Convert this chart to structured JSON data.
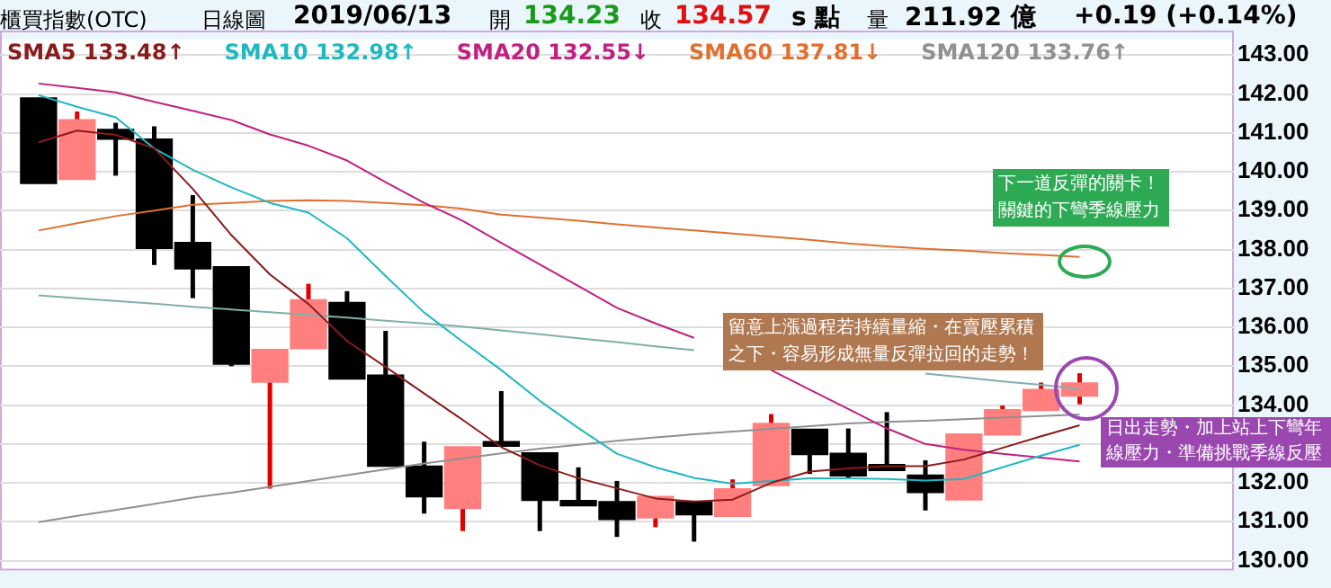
{
  "chart_data": {
    "type": "candlestick",
    "title": "櫃買指數(OTC)",
    "annotations": [
      "日線圖",
      "2019/06/13",
      "開",
      "134.23",
      "收",
      "134.57",
      "s 點",
      "量",
      "211.92 億",
      "+0.19 (+0.14%)",
      "下一道反彈的關卡！關鍵的下彎季線壓力",
      "留意上漲過程若持續量縮・在賣壓累積之下・容易形成無量反彈拉回的走勢！",
      "日出走勢・加上站上下彎年線壓力・準備挑戰季線反壓"
    ],
    "categories": [
      null,
      null,
      null,
      null,
      null,
      null,
      null,
      null,
      null,
      null,
      null,
      null,
      null,
      null,
      null,
      null,
      null,
      null,
      null,
      null,
      null,
      null,
      null,
      null,
      null,
      null,
      null,
      null
    ],
    "ohlc": [
      [
        141.9,
        141.9,
        139.7,
        139.7
      ],
      [
        139.8,
        141.55,
        139.8,
        141.34
      ],
      [
        141.09,
        141.26,
        139.9,
        140.84
      ],
      [
        140.84,
        141.17,
        137.6,
        138.03
      ],
      [
        138.18,
        139.4,
        136.75,
        137.5
      ],
      [
        137.56,
        137.56,
        135.0,
        135.05
      ],
      [
        134.59,
        135.43,
        131.85,
        135.43
      ],
      [
        135.45,
        137.12,
        135.45,
        136.71
      ],
      [
        136.64,
        136.93,
        134.67,
        134.67
      ],
      [
        134.77,
        135.91,
        132.43,
        132.43
      ],
      [
        132.43,
        133.06,
        131.21,
        131.64
      ],
      [
        131.34,
        132.93,
        130.76,
        132.93
      ],
      [
        133.06,
        134.36,
        132.94,
        132.94
      ],
      [
        132.77,
        132.77,
        130.76,
        131.55
      ],
      [
        131.55,
        132.4,
        131.41,
        131.41
      ],
      [
        131.52,
        132.05,
        130.61,
        131.06
      ],
      [
        131.1,
        131.65,
        130.86,
        131.65
      ],
      [
        131.52,
        131.52,
        130.49,
        131.18
      ],
      [
        131.14,
        132.09,
        131.14,
        131.85
      ],
      [
        131.93,
        133.77,
        131.93,
        133.53
      ],
      [
        133.38,
        133.38,
        132.23,
        132.73
      ],
      [
        132.76,
        133.4,
        132.11,
        132.18
      ],
      [
        132.47,
        133.82,
        132.32,
        132.32
      ],
      [
        132.2,
        132.58,
        131.29,
        131.75
      ],
      [
        131.56,
        133.26,
        131.56,
        133.26
      ],
      [
        133.23,
        133.99,
        133.23,
        133.88
      ],
      [
        133.86,
        134.58,
        133.86,
        134.4
      ],
      [
        134.23,
        134.82,
        134.02,
        134.57
      ]
    ],
    "colors": [
      "#000000",
      "#ff7f7f",
      "#000000",
      "#000000",
      "#000000",
      "#000000",
      "#ff7f7f",
      "#ff7f7f",
      "#000000",
      "#000000",
      "#000000",
      "#ff7f7f",
      "#000000",
      "#000000",
      "#000000",
      "#000000",
      "#ff7f7f",
      "#000000",
      "#ff7f7f",
      "#ff7f7f",
      "#000000",
      "#000000",
      "#000000",
      "#000000",
      "#ff7f7f",
      "#ff7f7f",
      "#ff7f7f",
      "#ff7f7f"
    ],
    "series": [
      {
        "type": "line",
        "name": "SMA5 133.48↑",
        "color": "#8b1a1a",
        "values": [
          140.76,
          141.06,
          140.95,
          140.6,
          139.56,
          138.37,
          137.36,
          136.6,
          135.65,
          134.98,
          134.3,
          133.62,
          132.92,
          132.45,
          132.12,
          131.86,
          131.6,
          131.52,
          131.57,
          132.0,
          132.29,
          132.37,
          132.43,
          132.43,
          132.6,
          132.9,
          133.2,
          133.48
        ]
      },
      {
        "type": "line",
        "name": "SMA10 132.98↑",
        "color": "#20b8c0",
        "values": [
          141.97,
          141.67,
          141.4,
          140.6,
          140.05,
          139.6,
          139.2,
          138.95,
          138.29,
          137.32,
          136.38,
          135.63,
          134.9,
          134.11,
          133.41,
          132.75,
          132.4,
          132.13,
          131.98,
          132.05,
          132.12,
          132.12,
          132.1,
          132.06,
          132.1,
          132.4,
          132.7,
          132.98
        ]
      },
      {
        "type": "line",
        "name": "SMA20 132.55↓",
        "color": "#c02080",
        "values": [
          142.27,
          142.16,
          142.04,
          141.8,
          141.57,
          141.33,
          140.96,
          140.67,
          140.29,
          139.73,
          139.2,
          138.74,
          138.17,
          137.62,
          137.06,
          136.5,
          136.1,
          135.73,
          null,
          134.9,
          134.4,
          133.9,
          133.4,
          133.0,
          132.85,
          132.75,
          132.65,
          132.55
        ]
      },
      {
        "type": "line",
        "name": "SMA60 137.81↓",
        "color": "#e07030",
        "values": [
          138.49,
          138.68,
          138.86,
          139.0,
          139.15,
          139.2,
          139.25,
          139.27,
          139.25,
          139.2,
          139.14,
          139.05,
          138.9,
          138.82,
          138.74,
          138.65,
          138.57,
          138.49,
          138.41,
          138.33,
          138.25,
          138.16,
          138.08,
          138.02,
          137.97,
          137.91,
          137.86,
          137.81
        ]
      },
      {
        "type": "line",
        "name": "SMA120 133.76↑",
        "color": "#909090",
        "values": [
          130.99,
          131.15,
          131.3,
          131.46,
          131.62,
          131.75,
          131.9,
          132.05,
          132.2,
          132.35,
          132.5,
          132.63,
          132.76,
          132.88,
          132.98,
          133.08,
          133.17,
          133.25,
          133.32,
          133.39,
          133.46,
          133.53,
          133.57,
          133.6,
          133.64,
          133.68,
          133.72,
          133.76
        ]
      },
      {
        "type": "line",
        "color": "#80b0a8",
        "values": [
          136.82,
          136.75,
          136.68,
          136.61,
          136.53,
          136.46,
          136.39,
          136.32,
          136.25,
          136.17,
          136.1,
          136.02,
          135.92,
          135.82,
          135.72,
          135.62,
          135.51,
          135.41,
          null,
          null,
          null,
          null,
          null,
          134.81,
          134.71,
          134.61,
          134.52,
          134.42
        ]
      }
    ],
    "ylim": [
      129.75,
      143.4
    ],
    "yticks": [
      {
        "value": 130,
        "label": "130.00"
      },
      {
        "value": 131,
        "label": "131.00"
      },
      {
        "value": 132,
        "label": "132.00"
      },
      {
        "value": 133,
        "label": null
      },
      {
        "value": 134,
        "label": "134.00"
      },
      {
        "value": 135,
        "label": "135.00"
      },
      {
        "value": 136,
        "label": "136.00"
      },
      {
        "value": 137,
        "label": "137.00"
      },
      {
        "value": 138,
        "label": "138.00"
      },
      {
        "value": 139,
        "label": "139.00"
      },
      {
        "value": 140,
        "label": "140.00"
      },
      {
        "value": 141,
        "label": "141.00"
      },
      {
        "value": 142,
        "label": "142.00"
      },
      {
        "value": 143,
        "label": "143.00"
      }
    ],
    "grid": "y",
    "legend": "top",
    "tick_labels": "y"
  }
}
